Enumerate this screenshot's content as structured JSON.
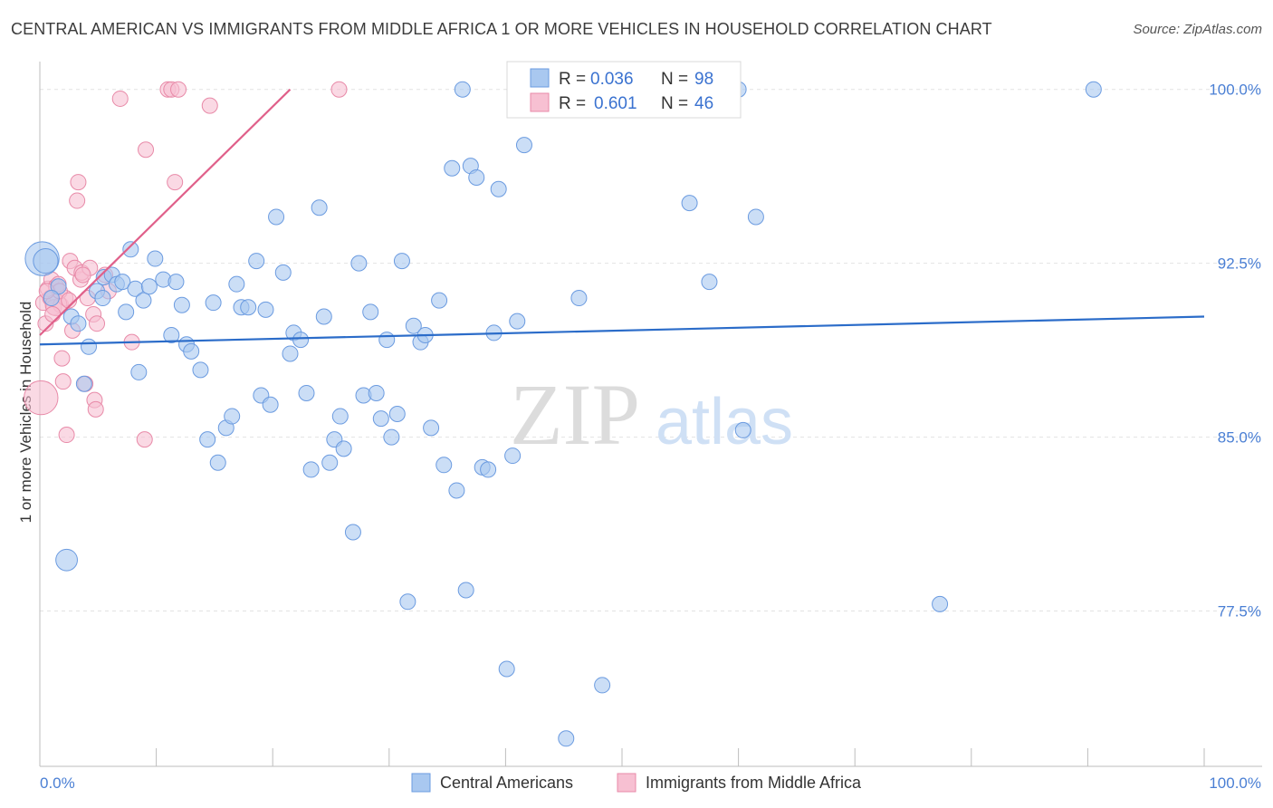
{
  "title": "CENTRAL AMERICAN VS IMMIGRANTS FROM MIDDLE AFRICA 1 OR MORE VEHICLES IN HOUSEHOLD CORRELATION CHART",
  "source": "Source: ZipAtlas.com",
  "watermark": {
    "zip": "ZIP",
    "atlas": "atlas"
  },
  "colors": {
    "blue_fill": "#a9c8f0",
    "blue_stroke": "#6b9be0",
    "blue_line": "#2b6cc9",
    "pink_fill": "#f7c0d2",
    "pink_stroke": "#e88aa8",
    "pink_line": "#e0608a",
    "grid": "#e2e2e2",
    "tick_label": "#4a7fd4"
  },
  "legend": {
    "rows": [
      {
        "r_label": "R = ",
        "r_value": "0.036",
        "n_label": "N = ",
        "n_value": "98"
      },
      {
        "r_label": "R = ",
        "r_value": "0.601",
        "n_label": "N = ",
        "n_value": "46"
      }
    ]
  },
  "chart_data": {
    "type": "scatter",
    "title": "CENTRAL AMERICAN VS IMMIGRANTS FROM MIDDLE AFRICA 1 OR MORE VEHICLES IN HOUSEHOLD CORRELATION CHART",
    "xlabel": "",
    "ylabel": "1 or more Vehicles in Household",
    "xlim": [
      0,
      100
    ],
    "ylim": [
      70.8,
      101.2
    ],
    "x_tick_labels": [
      "0.0%",
      "100.0%"
    ],
    "y_ticks": [
      {
        "value": 100.0,
        "label": "100.0%"
      },
      {
        "value": 92.5,
        "label": "92.5%"
      },
      {
        "value": 85.0,
        "label": "85.0%"
      },
      {
        "value": 77.5,
        "label": "77.5%"
      }
    ],
    "grid": true,
    "series": [
      {
        "name": "Central Americans",
        "color": "blue",
        "trend": {
          "x": [
            0,
            100
          ],
          "y": [
            89.0,
            90.2
          ]
        },
        "points": [
          {
            "x": 0.2,
            "y": 92.7,
            "s": 3
          },
          {
            "x": 0.5,
            "y": 92.6,
            "s": 2
          },
          {
            "x": 1.6,
            "y": 91.5,
            "s": 1
          },
          {
            "x": 1.0,
            "y": 91.0,
            "s": 1
          },
          {
            "x": 2.7,
            "y": 90.2,
            "s": 1
          },
          {
            "x": 3.3,
            "y": 89.9,
            "s": 1
          },
          {
            "x": 4.2,
            "y": 88.9,
            "s": 1
          },
          {
            "x": 4.9,
            "y": 91.3,
            "s": 1
          },
          {
            "x": 5.4,
            "y": 91.0,
            "s": 1
          },
          {
            "x": 5.5,
            "y": 91.9,
            "s": 1
          },
          {
            "x": 6.2,
            "y": 92.0,
            "s": 1
          },
          {
            "x": 6.6,
            "y": 91.6,
            "s": 1
          },
          {
            "x": 7.1,
            "y": 91.7,
            "s": 1
          },
          {
            "x": 7.4,
            "y": 90.4,
            "s": 1
          },
          {
            "x": 7.8,
            "y": 93.1,
            "s": 1
          },
          {
            "x": 8.2,
            "y": 91.4,
            "s": 1
          },
          {
            "x": 8.5,
            "y": 87.8,
            "s": 1
          },
          {
            "x": 8.9,
            "y": 90.9,
            "s": 1
          },
          {
            "x": 9.4,
            "y": 91.5,
            "s": 1
          },
          {
            "x": 9.9,
            "y": 92.7,
            "s": 1
          },
          {
            "x": 10.6,
            "y": 91.8,
            "s": 1
          },
          {
            "x": 11.3,
            "y": 89.4,
            "s": 1
          },
          {
            "x": 11.7,
            "y": 91.7,
            "s": 1
          },
          {
            "x": 12.2,
            "y": 90.7,
            "s": 1
          },
          {
            "x": 12.6,
            "y": 89.0,
            "s": 1
          },
          {
            "x": 13.0,
            "y": 88.7,
            "s": 1
          },
          {
            "x": 13.8,
            "y": 87.9,
            "s": 1
          },
          {
            "x": 14.4,
            "y": 84.9,
            "s": 1
          },
          {
            "x": 14.9,
            "y": 90.8,
            "s": 1
          },
          {
            "x": 15.3,
            "y": 83.9,
            "s": 1
          },
          {
            "x": 16.0,
            "y": 85.4,
            "s": 1
          },
          {
            "x": 16.5,
            "y": 85.9,
            "s": 1
          },
          {
            "x": 16.9,
            "y": 91.6,
            "s": 1
          },
          {
            "x": 17.3,
            "y": 90.6,
            "s": 1
          },
          {
            "x": 17.9,
            "y": 90.6,
            "s": 1
          },
          {
            "x": 18.6,
            "y": 92.6,
            "s": 1
          },
          {
            "x": 19.0,
            "y": 86.8,
            "s": 1
          },
          {
            "x": 19.4,
            "y": 90.5,
            "s": 1
          },
          {
            "x": 19.8,
            "y": 86.4,
            "s": 1
          },
          {
            "x": 20.3,
            "y": 94.5,
            "s": 1
          },
          {
            "x": 20.9,
            "y": 92.1,
            "s": 1
          },
          {
            "x": 21.5,
            "y": 88.6,
            "s": 1
          },
          {
            "x": 21.8,
            "y": 89.5,
            "s": 1
          },
          {
            "x": 22.4,
            "y": 89.2,
            "s": 1
          },
          {
            "x": 22.9,
            "y": 86.9,
            "s": 1
          },
          {
            "x": 23.3,
            "y": 83.6,
            "s": 1
          },
          {
            "x": 24.0,
            "y": 94.9,
            "s": 1
          },
          {
            "x": 24.4,
            "y": 90.2,
            "s": 1
          },
          {
            "x": 24.9,
            "y": 83.9,
            "s": 1
          },
          {
            "x": 25.3,
            "y": 84.9,
            "s": 1
          },
          {
            "x": 25.8,
            "y": 85.9,
            "s": 1
          },
          {
            "x": 26.1,
            "y": 84.5,
            "s": 1
          },
          {
            "x": 26.9,
            "y": 80.9,
            "s": 1
          },
          {
            "x": 27.4,
            "y": 92.5,
            "s": 1
          },
          {
            "x": 27.8,
            "y": 86.8,
            "s": 1
          },
          {
            "x": 28.4,
            "y": 90.4,
            "s": 1
          },
          {
            "x": 28.9,
            "y": 86.9,
            "s": 1
          },
          {
            "x": 29.3,
            "y": 85.8,
            "s": 1
          },
          {
            "x": 29.8,
            "y": 89.2,
            "s": 1
          },
          {
            "x": 30.2,
            "y": 85.0,
            "s": 1
          },
          {
            "x": 30.7,
            "y": 86.0,
            "s": 1
          },
          {
            "x": 31.1,
            "y": 92.6,
            "s": 1
          },
          {
            "x": 31.6,
            "y": 77.9,
            "s": 1
          },
          {
            "x": 32.1,
            "y": 89.8,
            "s": 1
          },
          {
            "x": 32.7,
            "y": 89.1,
            "s": 1
          },
          {
            "x": 33.1,
            "y": 89.4,
            "s": 1
          },
          {
            "x": 33.6,
            "y": 85.4,
            "s": 1
          },
          {
            "x": 34.3,
            "y": 90.9,
            "s": 1
          },
          {
            "x": 34.7,
            "y": 83.8,
            "s": 1
          },
          {
            "x": 35.4,
            "y": 96.6,
            "s": 1
          },
          {
            "x": 35.8,
            "y": 82.7,
            "s": 1
          },
          {
            "x": 36.3,
            "y": 100.0,
            "s": 1
          },
          {
            "x": 36.6,
            "y": 78.4,
            "s": 1
          },
          {
            "x": 37.0,
            "y": 96.7,
            "s": 1
          },
          {
            "x": 37.5,
            "y": 96.2,
            "s": 1
          },
          {
            "x": 38.0,
            "y": 83.7,
            "s": 1
          },
          {
            "x": 38.5,
            "y": 83.6,
            "s": 1
          },
          {
            "x": 39.0,
            "y": 89.5,
            "s": 1
          },
          {
            "x": 39.4,
            "y": 95.7,
            "s": 1
          },
          {
            "x": 40.1,
            "y": 75.0,
            "s": 1
          },
          {
            "x": 40.6,
            "y": 84.2,
            "s": 1
          },
          {
            "x": 41.0,
            "y": 90.0,
            "s": 1
          },
          {
            "x": 41.6,
            "y": 97.6,
            "s": 1
          },
          {
            "x": 45.2,
            "y": 72.0,
            "s": 1
          },
          {
            "x": 46.3,
            "y": 91.0,
            "s": 1
          },
          {
            "x": 47.0,
            "y": 100.0,
            "s": 1
          },
          {
            "x": 48.3,
            "y": 74.3,
            "s": 1
          },
          {
            "x": 52.6,
            "y": 100.0,
            "s": 1
          },
          {
            "x": 55.8,
            "y": 95.1,
            "s": 1
          },
          {
            "x": 57.5,
            "y": 91.7,
            "s": 1
          },
          {
            "x": 60.0,
            "y": 100.0,
            "s": 1
          },
          {
            "x": 60.4,
            "y": 85.3,
            "s": 1
          },
          {
            "x": 61.5,
            "y": 94.5,
            "s": 1
          },
          {
            "x": 77.3,
            "y": 77.8,
            "s": 1
          },
          {
            "x": 90.5,
            "y": 100.0,
            "s": 1
          },
          {
            "x": 2.3,
            "y": 79.7,
            "s": 1.4
          },
          {
            "x": 3.8,
            "y": 87.3,
            "s": 1
          }
        ]
      },
      {
        "name": "Immigrants from Middle Africa",
        "color": "pink",
        "trend": {
          "x": [
            0,
            21.5
          ],
          "y": [
            89.4,
            100.0
          ]
        },
        "points": [
          {
            "x": 0.1,
            "y": 86.7,
            "s": 3
          },
          {
            "x": 0.3,
            "y": 90.8,
            "s": 1
          },
          {
            "x": 0.5,
            "y": 89.9,
            "s": 1
          },
          {
            "x": 0.7,
            "y": 91.4,
            "s": 1
          },
          {
            "x": 0.9,
            "y": 91.0,
            "s": 1
          },
          {
            "x": 1.0,
            "y": 91.8,
            "s": 1
          },
          {
            "x": 1.2,
            "y": 90.6,
            "s": 1
          },
          {
            "x": 1.4,
            "y": 91.5,
            "s": 1
          },
          {
            "x": 1.6,
            "y": 91.6,
            "s": 1
          },
          {
            "x": 1.8,
            "y": 90.7,
            "s": 1
          },
          {
            "x": 1.9,
            "y": 88.4,
            "s": 1
          },
          {
            "x": 2.0,
            "y": 87.4,
            "s": 1
          },
          {
            "x": 2.2,
            "y": 91.0,
            "s": 1
          },
          {
            "x": 2.3,
            "y": 85.1,
            "s": 1
          },
          {
            "x": 2.6,
            "y": 92.6,
            "s": 1
          },
          {
            "x": 2.8,
            "y": 89.6,
            "s": 1
          },
          {
            "x": 3.0,
            "y": 92.3,
            "s": 1
          },
          {
            "x": 3.2,
            "y": 95.2,
            "s": 1
          },
          {
            "x": 3.3,
            "y": 96.0,
            "s": 1
          },
          {
            "x": 3.5,
            "y": 91.8,
            "s": 1
          },
          {
            "x": 3.6,
            "y": 92.1,
            "s": 1
          },
          {
            "x": 3.9,
            "y": 87.3,
            "s": 1
          },
          {
            "x": 4.1,
            "y": 91.0,
            "s": 1
          },
          {
            "x": 4.3,
            "y": 92.3,
            "s": 1
          },
          {
            "x": 4.6,
            "y": 90.3,
            "s": 1
          },
          {
            "x": 4.7,
            "y": 86.6,
            "s": 1
          },
          {
            "x": 4.8,
            "y": 86.2,
            "s": 1
          },
          {
            "x": 4.9,
            "y": 89.9,
            "s": 1
          },
          {
            "x": 5.6,
            "y": 92.0,
            "s": 1
          },
          {
            "x": 5.9,
            "y": 91.3,
            "s": 1
          },
          {
            "x": 6.9,
            "y": 99.6,
            "s": 1
          },
          {
            "x": 7.9,
            "y": 89.1,
            "s": 1
          },
          {
            "x": 9.0,
            "y": 84.9,
            "s": 1
          },
          {
            "x": 9.1,
            "y": 97.4,
            "s": 1
          },
          {
            "x": 11.0,
            "y": 100.0,
            "s": 1
          },
          {
            "x": 11.3,
            "y": 100.0,
            "s": 1
          },
          {
            "x": 11.6,
            "y": 96.0,
            "s": 1
          },
          {
            "x": 11.9,
            "y": 100.0,
            "s": 1
          },
          {
            "x": 14.6,
            "y": 99.3,
            "s": 1
          },
          {
            "x": 25.7,
            "y": 100.0,
            "s": 1
          },
          {
            "x": 1.4,
            "y": 90.7,
            "s": 1.4
          },
          {
            "x": 1.7,
            "y": 91.3,
            "s": 1
          },
          {
            "x": 0.6,
            "y": 91.3,
            "s": 1
          },
          {
            "x": 2.5,
            "y": 90.9,
            "s": 1
          },
          {
            "x": 1.1,
            "y": 90.3,
            "s": 1
          },
          {
            "x": 3.7,
            "y": 92.0,
            "s": 1
          }
        ]
      }
    ]
  },
  "bottom_legend": [
    {
      "label": "Central Americans"
    },
    {
      "label": "Immigrants from Middle Africa"
    }
  ]
}
